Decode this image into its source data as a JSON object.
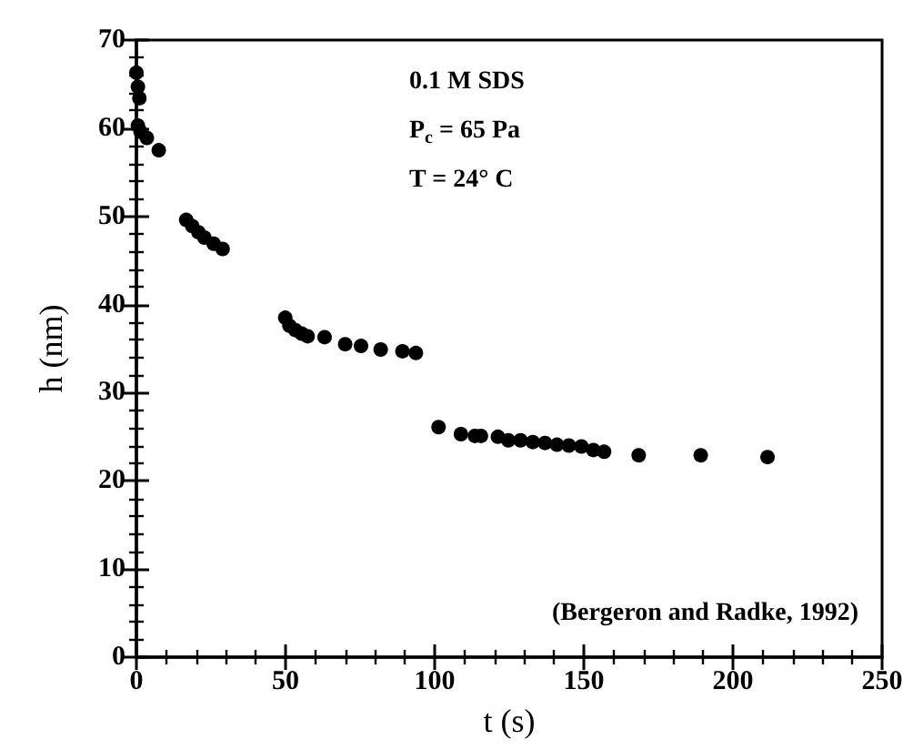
{
  "chart_data": {
    "type": "scatter",
    "xlabel": "t (s)",
    "ylabel": "h (nm)",
    "annotations": [
      "0.1 M SDS",
      "P$_{c}$ = 65 Pa",
      "T = 24° C",
      "(Bergeron and Radke, 1992)"
    ],
    "x": [
      0,
      0.5,
      1,
      0.5,
      1.4,
      3.5,
      7.5,
      16.7,
      18.7,
      20.8,
      22.8,
      25.9,
      28.9,
      49.9,
      51.3,
      53.3,
      55.4,
      57.4,
      63.1,
      70,
      75.3,
      81.9,
      89.2,
      93.7,
      101.3,
      108.8,
      113.5,
      115.5,
      121.2,
      124.7,
      128.8,
      132.9,
      137,
      141,
      145,
      149.2,
      153.2,
      156.8,
      168.4,
      189.2,
      211.6
    ],
    "values": [
      66.3,
      64.7,
      63.4,
      60.3,
      59.6,
      58.9,
      57.5,
      49.6,
      48.9,
      48.2,
      47.6,
      46.9,
      46.3,
      38.5,
      37.6,
      37.1,
      36.7,
      36.4,
      36.3,
      35.5,
      35.3,
      34.9,
      34.7,
      34.5,
      26.1,
      25.3,
      25.1,
      25.1,
      25,
      24.6,
      24.6,
      24.4,
      24.3,
      24.1,
      24,
      23.9,
      23.5,
      23.3,
      22.9,
      22.9,
      22.7
    ],
    "color": "#000000",
    "marker": "circle",
    "grid": false,
    "xlim": [
      0,
      250
    ],
    "xticks": [
      0,
      50,
      100,
      150,
      200,
      250
    ],
    "ylim": [
      0,
      70
    ],
    "yticks": [
      0,
      10,
      20,
      30,
      40,
      50,
      60,
      70
    ]
  }
}
